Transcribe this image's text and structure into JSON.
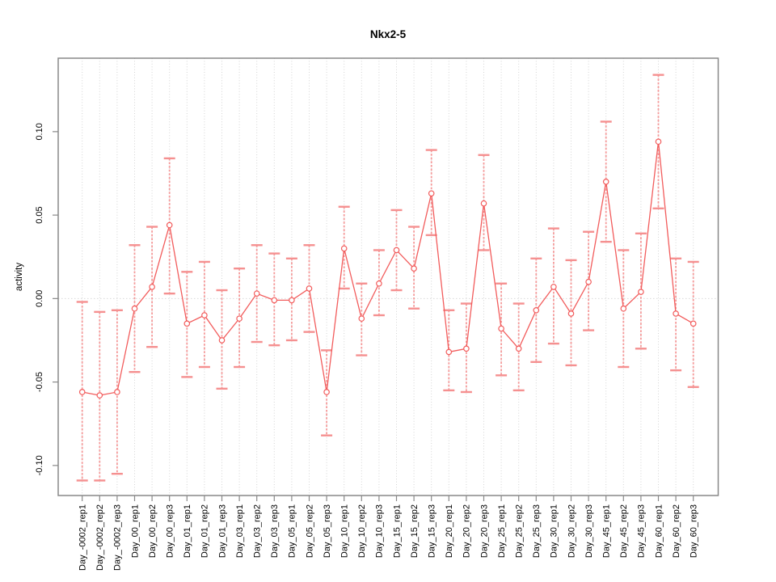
{
  "window_title": "Nkx2-5",
  "colors": {
    "series": "#f25c5c",
    "error_bar": "#f59090",
    "grid": "#d4d4d4",
    "zero_line": "#dadada",
    "axis": "#888888",
    "text": "#000000",
    "background": "#ffffff"
  },
  "chart_data": {
    "type": "line",
    "title": "Nkx2-5",
    "xlabel": "",
    "ylabel": "activity",
    "ylim": [
      -0.118,
      0.144
    ],
    "ytick_values": [
      0.1,
      0.05,
      0.0,
      -0.05,
      -0.1
    ],
    "ytick_labels": [
      "0.10",
      "0.05",
      "0.00",
      "-0.05",
      "-0.10"
    ],
    "grid_vertical_dotted_per_category": true,
    "zero_reference_line": true,
    "legend": "none",
    "marker": "open-circle",
    "error_bars": true,
    "categories": [
      "Day_-0002_rep1",
      "Day_-0002_rep2",
      "Day_-0002_rep3",
      "Day_00_rep1",
      "Day_00_rep2",
      "Day_00_rep3",
      "Day_01_rep1",
      "Day_01_rep2",
      "Day_01_rep3",
      "Day_03_rep1",
      "Day_03_rep2",
      "Day_03_rep3",
      "Day_05_rep1",
      "Day_05_rep2",
      "Day_05_rep3",
      "Day_10_rep1",
      "Day_10_rep2",
      "Day_10_rep3",
      "Day_15_rep1",
      "Day_15_rep2",
      "Day_15_rep3",
      "Day_20_rep1",
      "Day_20_rep2",
      "Day_20_rep3",
      "Day_25_rep1",
      "Day_25_rep2",
      "Day_25_rep3",
      "Day_30_rep1",
      "Day_30_rep2",
      "Day_30_rep3",
      "Day_45_rep1",
      "Day_45_rep2",
      "Day_45_rep3",
      "Day_60_rep1",
      "Day_60_rep2",
      "Day_60_rep3"
    ],
    "series": [
      {
        "name": "activity",
        "values": [
          -0.056,
          -0.058,
          -0.056,
          -0.006,
          0.007,
          0.044,
          -0.015,
          -0.01,
          -0.025,
          -0.012,
          0.003,
          -0.001,
          -0.001,
          0.006,
          -0.056,
          0.03,
          -0.012,
          0.009,
          0.029,
          0.018,
          0.063,
          -0.032,
          -0.03,
          0.057,
          -0.018,
          -0.03,
          -0.007,
          0.007,
          -0.009,
          0.01,
          0.07,
          -0.006,
          0.004,
          0.094,
          -0.009,
          -0.015
        ],
        "upper": [
          -0.002,
          -0.008,
          -0.007,
          0.032,
          0.043,
          0.084,
          0.016,
          0.022,
          0.005,
          0.018,
          0.032,
          0.027,
          0.024,
          0.032,
          -0.031,
          0.055,
          0.009,
          0.029,
          0.053,
          0.043,
          0.089,
          -0.007,
          -0.003,
          0.086,
          0.009,
          -0.003,
          0.024,
          0.042,
          0.023,
          0.04,
          0.106,
          0.029,
          0.039,
          0.134,
          0.024,
          0.022
        ],
        "lower": [
          -0.109,
          -0.109,
          -0.105,
          -0.044,
          -0.029,
          0.003,
          -0.047,
          -0.041,
          -0.054,
          -0.041,
          -0.026,
          -0.028,
          -0.025,
          -0.02,
          -0.082,
          0.006,
          -0.034,
          -0.01,
          0.005,
          -0.006,
          0.038,
          -0.055,
          -0.056,
          0.029,
          -0.046,
          -0.055,
          -0.038,
          -0.027,
          -0.04,
          -0.019,
          0.034,
          -0.041,
          -0.03,
          0.054,
          -0.043,
          -0.053
        ]
      }
    ]
  }
}
